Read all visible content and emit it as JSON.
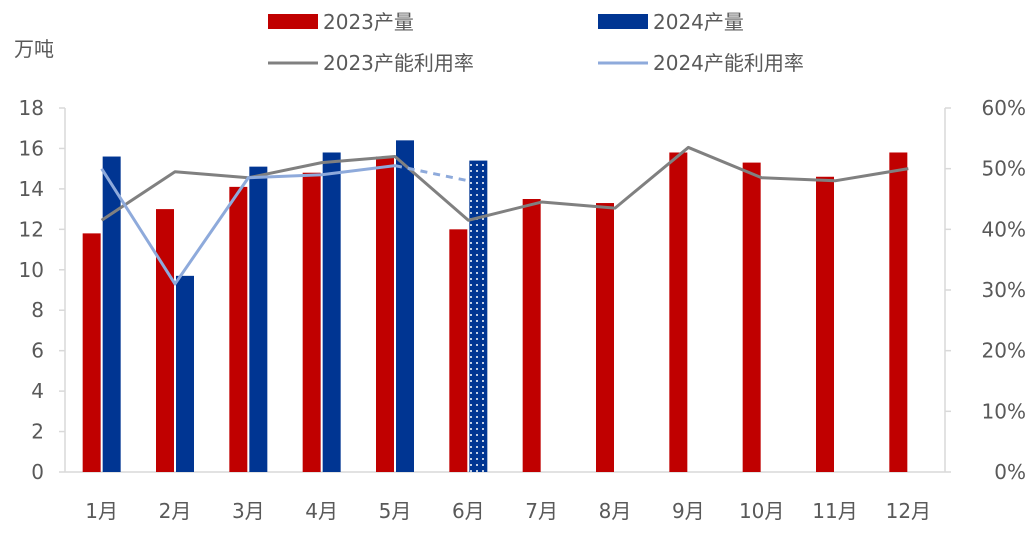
{
  "chart_data": {
    "type": "bar",
    "title": "",
    "categories": [
      "1月",
      "2月",
      "3月",
      "4月",
      "5月",
      "6月",
      "7月",
      "8月",
      "9月",
      "10月",
      "11月",
      "12月"
    ],
    "left_axis": {
      "unit_label": "万吨",
      "ylim": [
        0,
        18
      ],
      "ticks": [
        "0",
        "2",
        "4",
        "6",
        "8",
        "10",
        "12",
        "14",
        "16",
        "18"
      ]
    },
    "right_axis": {
      "ylim": [
        0,
        0.6
      ],
      "ticks": [
        "0%",
        "10%",
        "20%",
        "30%",
        "40%",
        "50%",
        "60%"
      ]
    },
    "series": [
      {
        "name": "2023产量",
        "type": "bar",
        "axis": "left",
        "color": "#c00000",
        "values": [
          11.8,
          13.0,
          14.1,
          14.8,
          15.6,
          12.0,
          13.5,
          13.3,
          15.8,
          15.3,
          14.6,
          15.8
        ]
      },
      {
        "name": "2024产量",
        "type": "bar",
        "axis": "left",
        "color": "#003592",
        "values": [
          15.6,
          9.7,
          15.1,
          15.8,
          16.4,
          15.4,
          null,
          null,
          null,
          null,
          null,
          null
        ],
        "estimated_index": 5
      },
      {
        "name": "2023产能利用率",
        "type": "line",
        "axis": "right",
        "color": "#808080",
        "values": [
          0.415,
          0.495,
          0.485,
          0.51,
          0.52,
          0.415,
          0.445,
          0.435,
          0.535,
          0.485,
          0.48,
          0.5
        ]
      },
      {
        "name": "2024产能利用率",
        "type": "line",
        "axis": "right",
        "color": "#8eaadb",
        "values": [
          0.5,
          0.31,
          0.485,
          0.49,
          0.505,
          0.48,
          null,
          null,
          null,
          null,
          null,
          null
        ],
        "estimated_index": 5
      }
    ],
    "legend_position": "top",
    "grid": false
  }
}
